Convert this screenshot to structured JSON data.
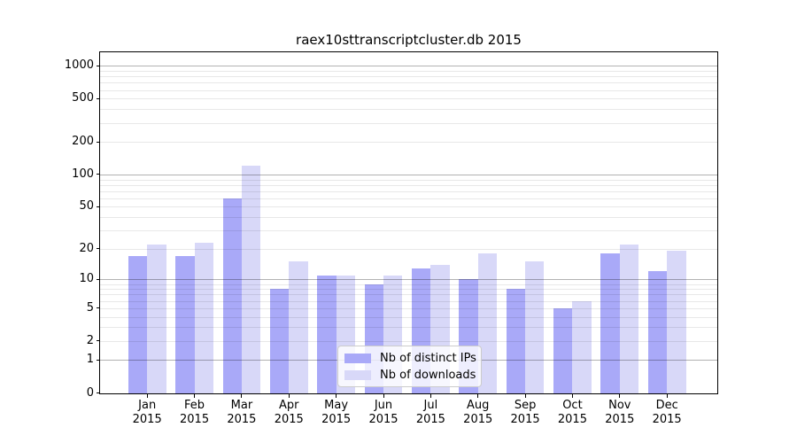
{
  "chart_data": {
    "type": "bar",
    "title": "raex10sttranscriptcluster.db 2015",
    "categories": [
      {
        "month": "Jan",
        "year": "2015"
      },
      {
        "month": "Feb",
        "year": "2015"
      },
      {
        "month": "Mar",
        "year": "2015"
      },
      {
        "month": "Apr",
        "year": "2015"
      },
      {
        "month": "May",
        "year": "2015"
      },
      {
        "month": "Jun",
        "year": "2015"
      },
      {
        "month": "Jul",
        "year": "2015"
      },
      {
        "month": "Aug",
        "year": "2015"
      },
      {
        "month": "Sep",
        "year": "2015"
      },
      {
        "month": "Oct",
        "year": "2015"
      },
      {
        "month": "Nov",
        "year": "2015"
      },
      {
        "month": "Dec",
        "year": "2015"
      }
    ],
    "series": [
      {
        "name": "Nb of distinct IPs",
        "color": "#a9a9f8",
        "values": [
          17,
          17,
          60,
          8,
          11,
          9,
          13,
          10,
          8,
          5,
          18,
          12
        ]
      },
      {
        "name": "Nb of downloads",
        "color": "#d8d8f8",
        "values": [
          22,
          23,
          120,
          15,
          11,
          11,
          14,
          18,
          15,
          6,
          22,
          19
        ]
      }
    ],
    "y_axis": {
      "scale": "log10(1+x)",
      "tick_values": [
        0,
        1,
        2,
        5,
        10,
        20,
        50,
        100,
        200,
        500,
        1000
      ],
      "ylim": [
        0,
        1320
      ]
    },
    "legend": {
      "position": "lower center"
    },
    "grid": true
  }
}
